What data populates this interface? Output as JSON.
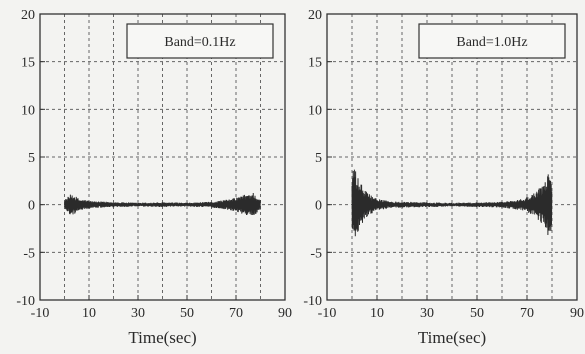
{
  "chart_data": [
    {
      "type": "line",
      "legend_text": "Band=0.1Hz",
      "legend_position": "top-right",
      "xlabel": "Time(sec)",
      "ylabel": "",
      "xlim": [
        -10,
        90
      ],
      "ylim": [
        -10,
        20
      ],
      "xticks": [
        -10,
        10,
        30,
        50,
        70,
        90
      ],
      "yticks": [
        -10,
        -5,
        0,
        5,
        10,
        15,
        20
      ],
      "grid": true,
      "signal": {
        "start": 0,
        "end": 80,
        "envelope": [
          [
            0,
            0.5
          ],
          [
            3,
            1.2
          ],
          [
            6,
            0.6
          ],
          [
            12,
            0.35
          ],
          [
            30,
            0.2
          ],
          [
            40,
            0.25
          ],
          [
            50,
            0.2
          ],
          [
            60,
            0.3
          ],
          [
            68,
            0.6
          ],
          [
            74,
            1.1
          ],
          [
            77,
            1.3
          ],
          [
            80,
            0.5
          ]
        ]
      }
    },
    {
      "type": "line",
      "legend_text": "Band=1.0Hz",
      "legend_position": "top-right",
      "xlabel": "Time(sec)",
      "ylabel": "",
      "xlim": [
        -10,
        90
      ],
      "ylim": [
        -10,
        20
      ],
      "xticks": [
        -10,
        10,
        30,
        50,
        70,
        90
      ],
      "yticks": [
        -10,
        -5,
        0,
        5,
        10,
        15,
        20
      ],
      "grid": true,
      "signal": {
        "start": 0,
        "end": 80,
        "envelope": [
          [
            0,
            3.2
          ],
          [
            0.6,
            4.3
          ],
          [
            2,
            3
          ],
          [
            5,
            1.6
          ],
          [
            9,
            0.7
          ],
          [
            15,
            0.35
          ],
          [
            30,
            0.25
          ],
          [
            40,
            0.2
          ],
          [
            50,
            0.25
          ],
          [
            60,
            0.3
          ],
          [
            68,
            0.6
          ],
          [
            73,
            1.2
          ],
          [
            77,
            2.3
          ],
          [
            79.2,
            3.8
          ],
          [
            79.8,
            4.4
          ],
          [
            80,
            0.5
          ]
        ]
      }
    }
  ]
}
